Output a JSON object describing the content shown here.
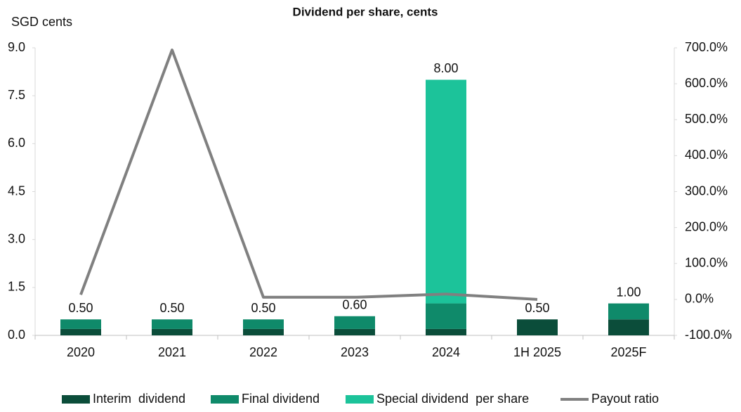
{
  "chart_data": {
    "type": "bar",
    "title": "Dividend per share, cents",
    "y_label": "SGD cents",
    "categories": [
      "2020",
      "2021",
      "2022",
      "2023",
      "2024",
      "1H 2025",
      "2025F"
    ],
    "stacked": true,
    "series": [
      {
        "name": "Interim  dividend",
        "color": "#0b4d3a",
        "values": [
          0.2,
          0.2,
          0.2,
          0.2,
          0.2,
          0.5,
          0.5
        ]
      },
      {
        "name": "Final dividend",
        "color": "#0f8a6a",
        "values": [
          0.3,
          0.3,
          0.3,
          0.4,
          0.8,
          0,
          0.5
        ]
      },
      {
        "name": "Special dividend  per share",
        "color": "#1cc39a",
        "values": [
          0,
          0,
          0,
          0,
          7,
          0,
          0
        ]
      },
      {
        "name": "Payout ratio",
        "color": "#808080",
        "type": "line",
        "axis": "y2",
        "values": [
          13,
          694,
          6,
          6,
          15,
          0,
          null
        ]
      }
    ],
    "totals": {
      "values": [
        0.5,
        0.5,
        0.5,
        0.6,
        8,
        0.5,
        1
      ],
      "value_labels": [
        "0.50",
        "0.50",
        "0.50",
        "0.60",
        "8.00",
        "0.50",
        "1.00"
      ]
    },
    "ylim": [
      0,
      9
    ],
    "yticks": [
      {
        "value": 0,
        "label": "0.0"
      },
      1.5,
      {
        "value": 3,
        "label": "3.0"
      },
      4.5,
      {
        "value": 6,
        "label": "6.0"
      },
      7.5,
      {
        "value": 9,
        "label": "9.0"
      }
    ],
    "y2lim": [
      -100,
      700
    ],
    "y2ticks": [
      {
        "value": -100,
        "label": "-100.0%"
      },
      {
        "value": 0,
        "label": "0.0%"
      },
      {
        "value": 100,
        "label": "100.0%"
      },
      {
        "value": 200,
        "label": "200.0%"
      },
      {
        "value": 300,
        "label": "300.0%"
      },
      {
        "value": 400,
        "label": "400.0%"
      },
      {
        "value": 500,
        "label": "500.0%"
      },
      {
        "value": 600,
        "label": "600.0%"
      },
      {
        "value": 700,
        "label": "700.0%"
      }
    ],
    "legend": "bottom"
  }
}
